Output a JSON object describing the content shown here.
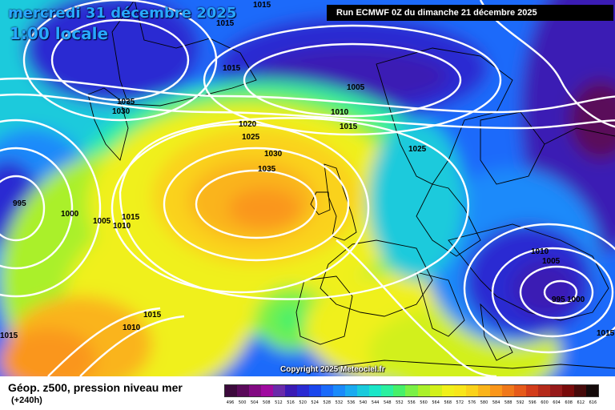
{
  "header": {
    "date_text": "mercredi 31 décembre 2025",
    "time_text": "1:00 locale",
    "run_text": "Run ECMWF 0Z du dimanche 21 décembre 2025"
  },
  "map": {
    "copyright": "Copyright 2025 Meteociel.fr",
    "isobar_labels": [
      "1015",
      "1015",
      "1015",
      "1005",
      "1035",
      "1030",
      "1010",
      "1015",
      "1020",
      "1025",
      "1030",
      "1035",
      "1025",
      "995",
      "1000",
      "1005",
      "1015",
      "1010",
      "1010",
      "1005",
      "995",
      "1000",
      "1015",
      "1010",
      "1015",
      "1015"
    ]
  },
  "footer": {
    "layer_title": "Géop. z500, pression niveau mer",
    "lead_time": "(+240h)",
    "scale_labels": [
      "496",
      "500",
      "504",
      "508",
      "512",
      "516",
      "520",
      "524",
      "528",
      "532",
      "536",
      "540",
      "544",
      "548",
      "552",
      "556",
      "560",
      "564",
      "568",
      "572",
      "576",
      "580",
      "584",
      "588",
      "592",
      "596",
      "600",
      "604",
      "608",
      "612",
      "616"
    ],
    "scale_colors": [
      "#3c0a3c",
      "#5a0a5a",
      "#820a82",
      "#a00aa0",
      "#6a2aaa",
      "#3a1ab4",
      "#2a2ad2",
      "#1a46ec",
      "#1a6afa",
      "#1a8afa",
      "#1aaaf0",
      "#1acadc",
      "#1ae6c8",
      "#2af0a0",
      "#46f06a",
      "#7af046",
      "#aaf02a",
      "#d2f01a",
      "#f0f01a",
      "#f8e61a",
      "#fad21a",
      "#fab41a",
      "#fa961a",
      "#f0781a",
      "#e65a1a",
      "#d23c1a",
      "#b42a1a",
      "#961a1a",
      "#780a0a",
      "#460a0a",
      "#140a0a"
    ]
  }
}
